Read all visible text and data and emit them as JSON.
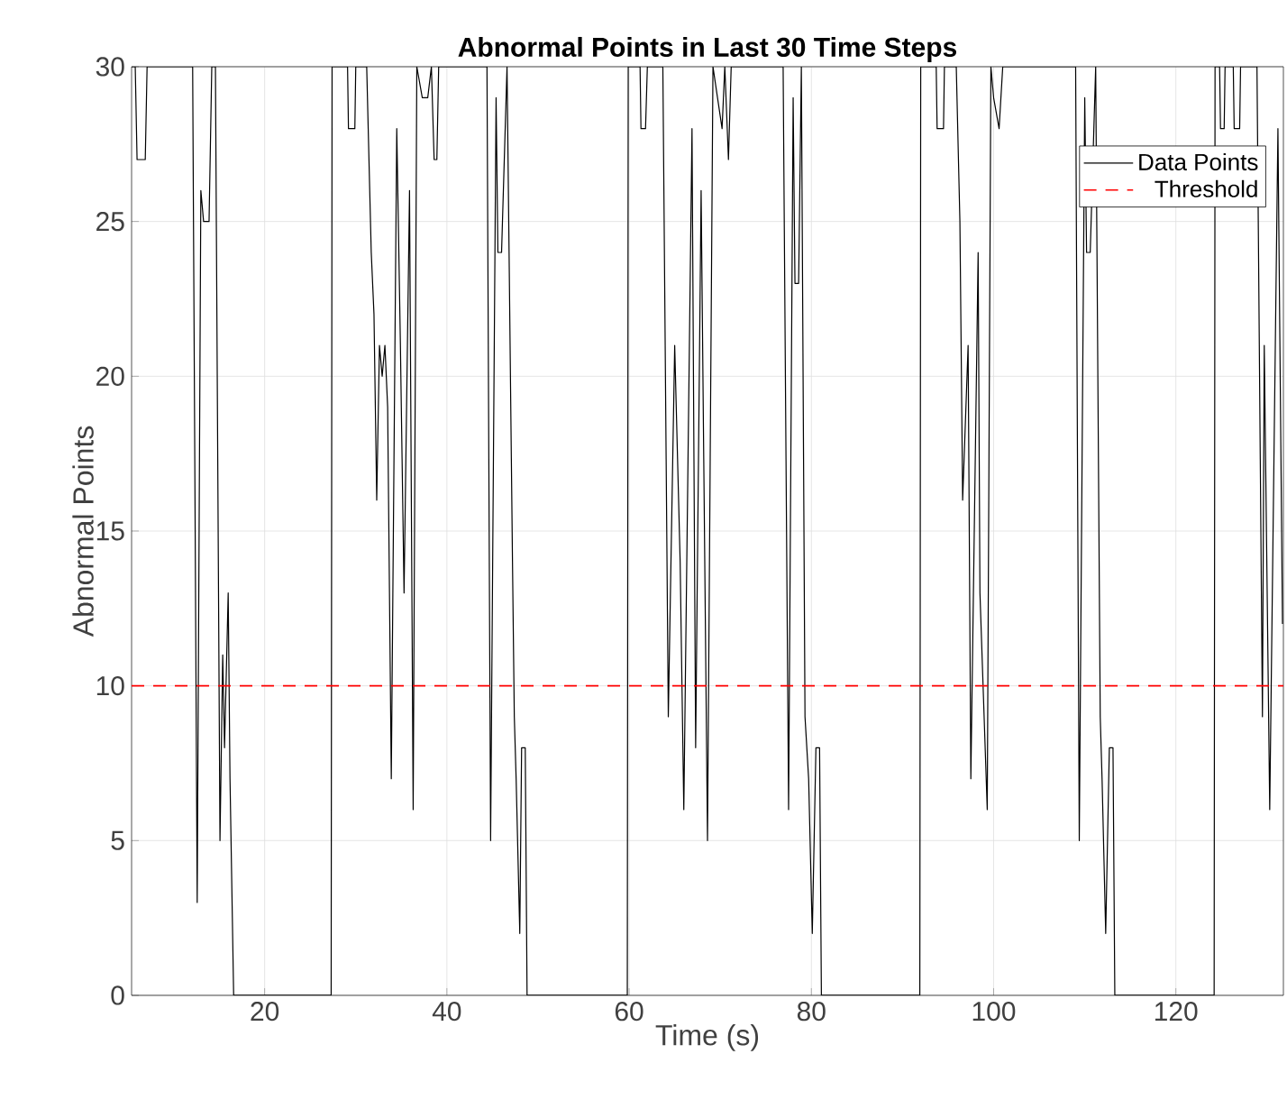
{
  "chart_data": {
    "type": "line",
    "title": "Abnormal Points in Last 30 Time Steps",
    "xlabel": "Time (s)",
    "ylabel": "Abnormal Points",
    "xlim": [
      5.4,
      131.8
    ],
    "ylim": [
      0,
      30
    ],
    "xticks": [
      20,
      40,
      60,
      80,
      100,
      120
    ],
    "yticks": [
      0,
      5,
      10,
      15,
      20,
      25,
      30
    ],
    "grid": true,
    "legend": "top right",
    "line_style": "solid",
    "marker": "none",
    "series": [
      {
        "name": "Data Points",
        "color": "#000000",
        "x": [
          5.4,
          5.8,
          6.0,
          6.9,
          7.1,
          12.1,
          12.6,
          13.0,
          13.3,
          13.9,
          14.2,
          14.6,
          15.1,
          15.4,
          15.6,
          16.0,
          16.2,
          16.6,
          27.3,
          27.4,
          29.1,
          29.2,
          29.9,
          30.0,
          31.2,
          31.7,
          32.0,
          32.3,
          32.6,
          32.9,
          33.2,
          33.5,
          33.9,
          34.5,
          34.9,
          35.3,
          35.9,
          36.3,
          36.7,
          37.3,
          37.9,
          38.3,
          38.6,
          38.9,
          39.1,
          44.4,
          44.8,
          45.4,
          45.6,
          46.0,
          46.6,
          47.2,
          47.4,
          47.6,
          48.0,
          48.2,
          48.6,
          48.8,
          59.8,
          59.9,
          61.2,
          61.3,
          61.8,
          62.0,
          63.7,
          64.3,
          65.0,
          65.6,
          66.0,
          66.9,
          67.3,
          67.9,
          68.6,
          69.2,
          69.7,
          70.2,
          70.5,
          70.9,
          71.2,
          76.9,
          77.5,
          78.0,
          78.2,
          78.6,
          78.9,
          79.3,
          79.7,
          80.1,
          80.5,
          80.9,
          81.1,
          91.9,
          92.0,
          93.7,
          93.8,
          94.5,
          94.6,
          95.9,
          96.3,
          96.6,
          97.2,
          97.5,
          98.3,
          98.5,
          99.3,
          99.7,
          100.0,
          100.6,
          101.0,
          109.0,
          109.4,
          110.0,
          110.2,
          110.6,
          111.2,
          111.7,
          111.9,
          112.3,
          112.7,
          113.1,
          113.3,
          124.2,
          124.3,
          124.8,
          124.9,
          125.3,
          125.4,
          126.3,
          126.4,
          127.0,
          127.1,
          128.9,
          129.5,
          129.7,
          130.3,
          131.2,
          131.7
        ],
        "values": [
          30,
          30,
          27,
          27,
          30,
          30,
          3,
          26,
          25,
          25,
          30,
          30,
          5,
          11,
          8,
          13,
          7,
          0,
          0,
          30,
          30,
          28,
          28,
          30,
          30,
          24,
          22,
          16,
          21,
          20,
          21,
          19,
          7,
          28,
          21,
          13,
          26,
          6,
          30,
          29,
          29,
          30,
          27,
          27,
          30,
          30,
          5,
          29,
          24,
          24,
          30,
          14,
          9,
          7,
          2,
          8,
          8,
          0,
          0,
          30,
          30,
          28,
          28,
          30,
          30,
          9,
          21,
          14,
          6,
          28,
          8,
          26,
          5,
          30,
          29,
          28,
          30,
          27,
          30,
          30,
          6,
          29,
          23,
          23,
          30,
          9,
          7,
          2,
          8,
          8,
          0,
          0,
          30,
          30,
          28,
          28,
          30,
          30,
          25,
          16,
          21,
          7,
          24,
          13,
          6,
          30,
          29,
          28,
          30,
          30,
          5,
          29,
          24,
          24,
          30,
          9,
          7,
          2,
          8,
          8,
          0,
          0,
          30,
          30,
          28,
          28,
          30,
          30,
          28,
          28,
          30,
          30,
          9,
          21,
          6,
          28,
          12
        ]
      }
    ],
    "ref_lines": [
      {
        "axis": "y",
        "value": 10,
        "label": "Threshold",
        "color": "#ff0000",
        "line_style": "dashed"
      }
    ]
  }
}
